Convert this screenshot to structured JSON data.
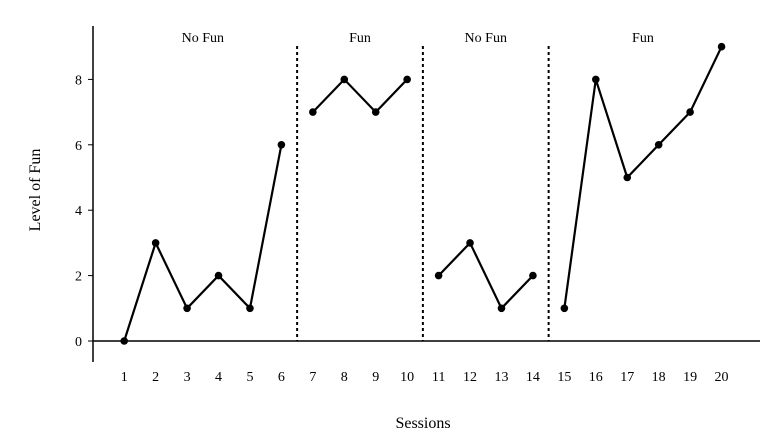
{
  "chart_data": {
    "type": "line",
    "title": "",
    "xlabel": "Sessions",
    "ylabel": "Level of Fun",
    "xlim": [
      0.5,
      21.3
    ],
    "ylim": [
      -0.6,
      9.6
    ],
    "x_ticks": [
      "1",
      "2",
      "3",
      "4",
      "5",
      "6",
      "7",
      "8",
      "9",
      "10",
      "11",
      "12",
      "13",
      "14",
      "15",
      "16",
      "17",
      "18",
      "19",
      "20"
    ],
    "y_ticks": [
      "0",
      "2",
      "4",
      "6",
      "8"
    ],
    "grid": false,
    "legend": "none",
    "phase_boundaries": [
      6.5,
      10.5,
      14.5
    ],
    "phases": [
      {
        "label": "No Fun",
        "start": 1,
        "end": 6
      },
      {
        "label": "Fun",
        "start": 7,
        "end": 10
      },
      {
        "label": "No Fun",
        "start": 11,
        "end": 14
      },
      {
        "label": "Fun",
        "start": 15,
        "end": 20
      }
    ],
    "series": [
      {
        "x": [
          1,
          2,
          3,
          4,
          5,
          6
        ],
        "values": [
          0,
          3,
          1,
          2,
          1,
          6
        ]
      },
      {
        "x": [
          7,
          8,
          9,
          10
        ],
        "values": [
          7,
          8,
          7,
          8
        ]
      },
      {
        "x": [
          11,
          12,
          13,
          14
        ],
        "values": [
          2,
          3,
          1,
          2
        ]
      },
      {
        "x": [
          15,
          16,
          17,
          18,
          19,
          20
        ],
        "values": [
          1,
          8,
          5,
          6,
          7,
          9
        ]
      }
    ],
    "colors": {
      "line": "#000000",
      "marker": "#000000"
    }
  }
}
